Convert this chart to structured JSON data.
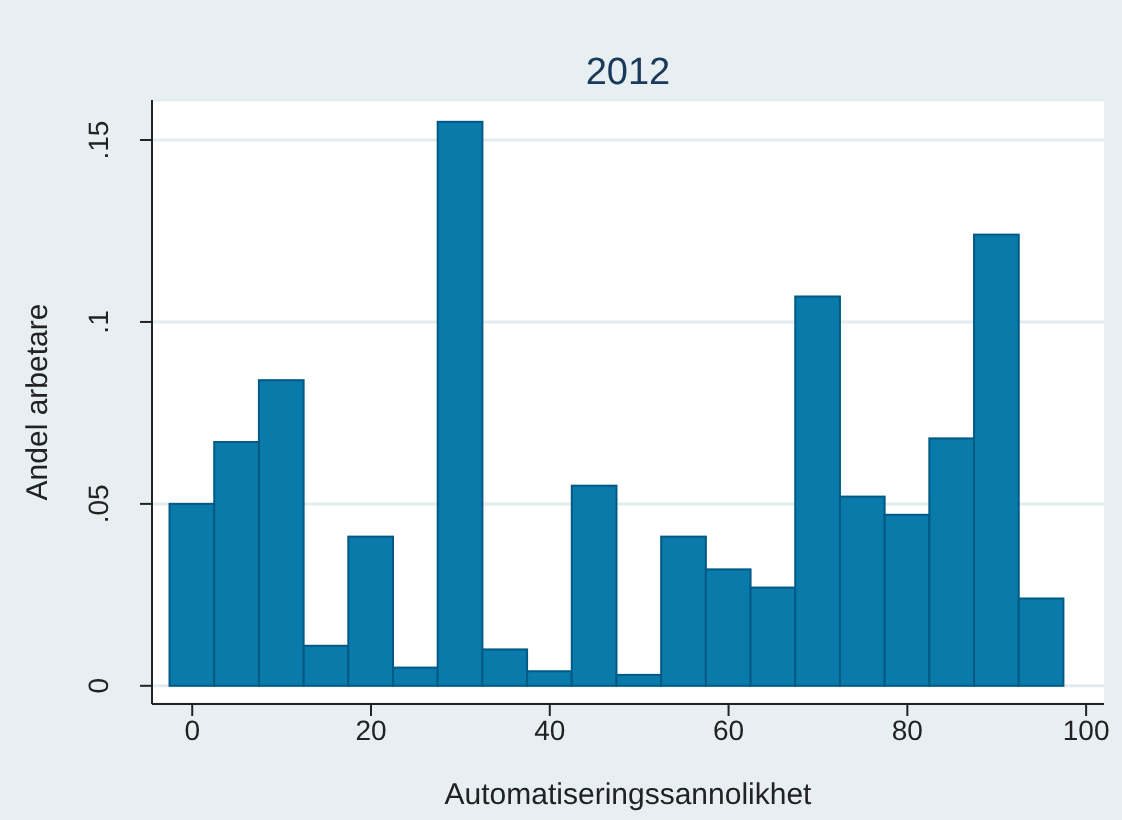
{
  "chart_data": {
    "type": "histogram",
    "title": "2012",
    "xlabel": "Automatiseringssannolikhet",
    "ylabel": "Andel arbetare",
    "bins": [
      -2.5,
      2.5,
      7.5,
      12.5,
      17.5,
      22.5,
      27.5,
      32.5,
      37.5,
      42.5,
      47.5,
      52.5,
      57.5,
      62.5,
      67.5,
      72.5,
      77.5,
      82.5,
      87.5,
      92.5,
      97.5
    ],
    "values": [
      0.05,
      0.067,
      0.084,
      0.011,
      0.041,
      0.005,
      0.155,
      0.01,
      0.004,
      0.055,
      0.003,
      0.041,
      0.032,
      0.027,
      0.107,
      0.052,
      0.047,
      0.068,
      0.124,
      0.024
    ],
    "color": "#0a7aaa",
    "xlim": [
      -4.5,
      102
    ],
    "xticks": [
      0,
      20,
      40,
      60,
      80,
      100
    ],
    "ylim": [
      -0.005,
      0.161
    ],
    "yticks": [
      {
        "value": 0,
        "label": "0"
      },
      {
        "value": 0.05,
        "label": ".05"
      },
      {
        "value": 0.1,
        "label": ".1"
      },
      {
        "value": 0.15,
        "label": ".15"
      }
    ],
    "grid": "y",
    "legend": false
  }
}
